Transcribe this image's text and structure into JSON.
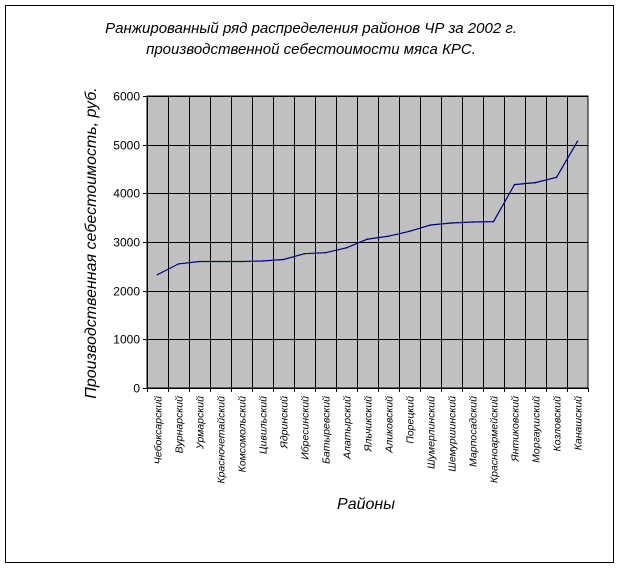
{
  "chart_data": {
    "type": "line",
    "title_lines": [
      "Ранжированный ряд распределения районов ЧР за 2002 г.",
      "производственной себестоимости мяса КРС."
    ],
    "xlabel": "Районы",
    "ylabel": "Производственная себестоимость, руб.",
    "ylim": [
      0,
      6000
    ],
    "yticks": [
      0,
      1000,
      2000,
      3000,
      4000,
      5000,
      6000
    ],
    "grid": true,
    "line_color": "#000080",
    "plot_background": "#c0c0c0",
    "categories": [
      "Чебоксарский",
      "Вурнарский",
      "Урмарский",
      "Красночетайский",
      "Комсомольский",
      "Цивильский",
      "Ядринский",
      "Ибресинский",
      "Батыревский",
      "Алатырский",
      "Яльчикский",
      "Аликовский",
      "Порецкий",
      "Шумерлинский",
      "Шемуршинский",
      "Марпосадский",
      "Красноармейский",
      "Янтиковский",
      "Моргаушский",
      "Козловский",
      "Канашский"
    ],
    "values": [
      2330,
      2550,
      2600,
      2600,
      2600,
      2610,
      2640,
      2760,
      2780,
      2880,
      3060,
      3120,
      3220,
      3350,
      3390,
      3410,
      3420,
      4180,
      4220,
      4330,
      5070
    ]
  }
}
